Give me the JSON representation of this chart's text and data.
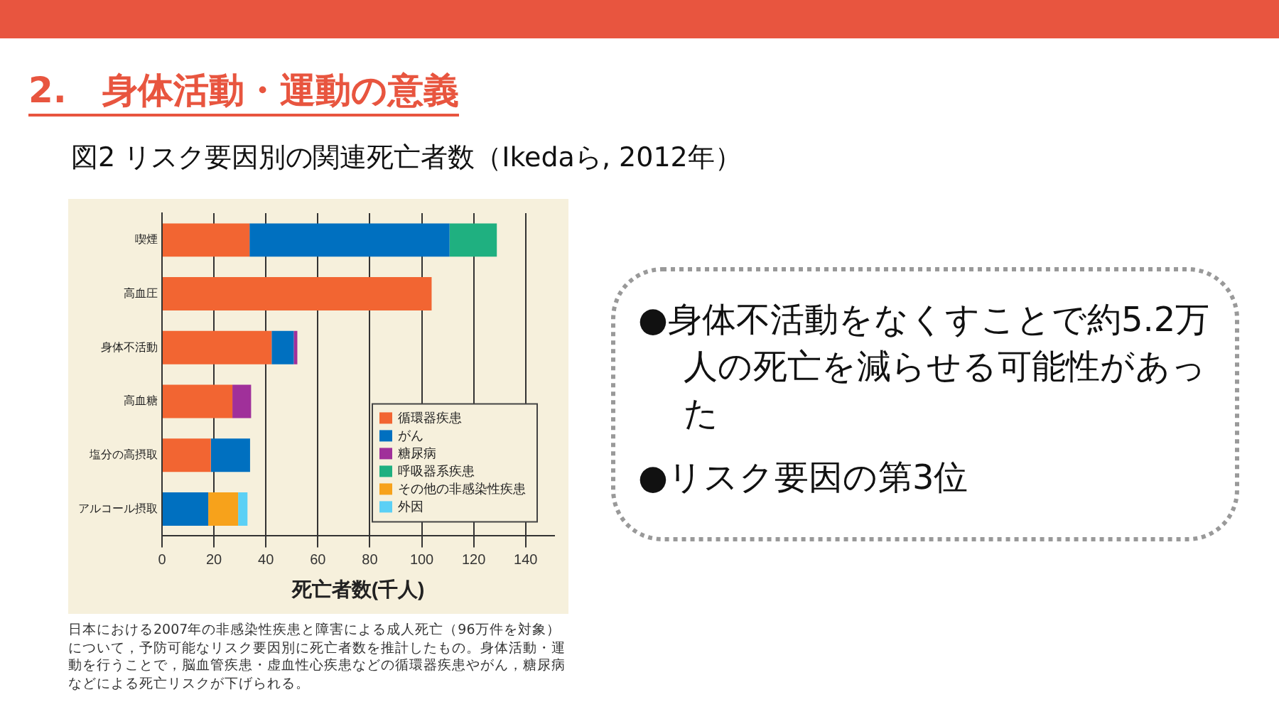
{
  "chart_data": {
    "type": "bar",
    "orientation": "horizontal",
    "stacked": true,
    "title": "2.　身体活動・運動の意義",
    "subtitle": "図2 リスク要因別の関連死亡者数（Ikedaら, 2012年）",
    "xlabel": "死亡者数(千人)",
    "categories": [
      "喫煙",
      "高血圧",
      "身体不活動",
      "高血糖",
      "塩分の高摂取",
      "アルコール摂取"
    ],
    "series": [
      {
        "name": "循環器疾患",
        "color": "#f26532",
        "values": [
          33.7,
          103.8,
          42.2,
          27.1,
          18.8,
          null
        ]
      },
      {
        "name": "がん",
        "color": "#0070c0",
        "values": [
          77,
          null,
          8.5,
          null,
          15.1,
          17.8
        ]
      },
      {
        "name": "糖尿病",
        "color": "#a0309a",
        "values": [
          null,
          null,
          1.4,
          7.2,
          null,
          null
        ]
      },
      {
        "name": "呼吸器系疾患",
        "color": "#1fb080",
        "values": [
          18.2,
          null,
          null,
          null,
          null,
          null
        ]
      },
      {
        "name": "その他の非感染性疾患",
        "color": "#f7a21b",
        "values": [
          null,
          null,
          null,
          null,
          null,
          11.5
        ]
      },
      {
        "name": "外因",
        "color": "#5bd0f5",
        "values": [
          null,
          null,
          null,
          null,
          null,
          3.6
        ]
      }
    ],
    "xlim": [
      0,
      151
    ],
    "xticks": [
      0,
      20,
      40,
      60,
      80,
      100,
      120,
      140
    ],
    "grid": "x",
    "legend": "bottom right",
    "annotations": [
      "日本における2007年の非感染性疾患と障害による成人死亡（96万件を対象）について，予防可能なリスク要因別に死亡者数を推計したもの。身体活動・運動を行うことで，脳血管疾患・虚血性心疾患などの循環器疾患やがん，糖尿病などによる死亡リスクが下げられる。",
      "●身体不活動をなくすことで約5.2万人の死亡を減らせる可能性があった",
      "●リスク要因の第3位"
    ]
  }
}
